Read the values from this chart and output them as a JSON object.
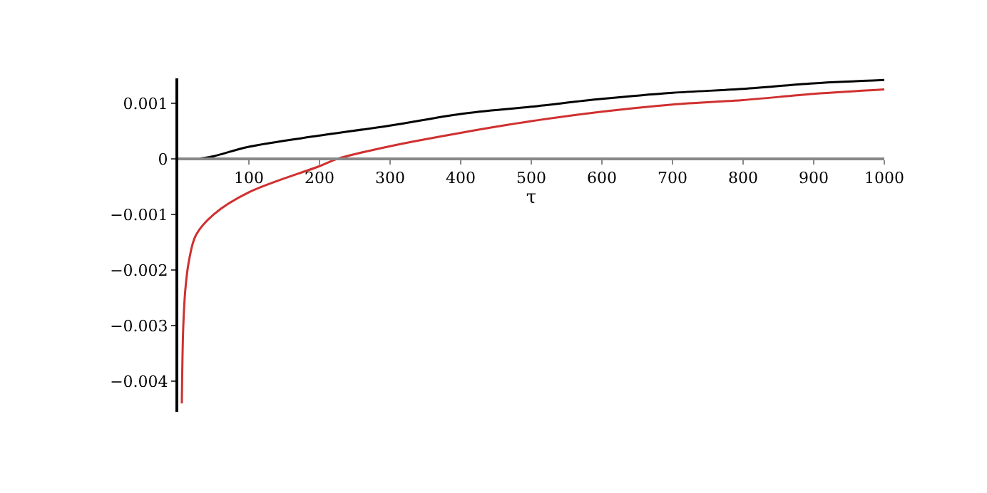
{
  "chart_data": {
    "type": "line",
    "xlabel": "τ",
    "xlim": [
      0,
      1000
    ],
    "xticks": [
      100,
      200,
      300,
      400,
      500,
      600,
      700,
      800,
      900,
      1000
    ],
    "ylim": [
      -0.00455,
      0.00145
    ],
    "yticks": [
      {
        "value": 0.001,
        "label": "0.001"
      },
      0,
      {
        "value": -0.001,
        "label": "−0.001"
      },
      {
        "value": -0.002,
        "label": "−0.002"
      },
      {
        "value": -0.003,
        "label": "−0.003"
      },
      {
        "value": -0.004,
        "label": "−0.004"
      }
    ],
    "legend": false,
    "marker": "none",
    "line_style": "solid",
    "series": [
      {
        "color": "#000000",
        "x": [
          0,
          25,
          50,
          100,
          200,
          300,
          400,
          500,
          600,
          700,
          800,
          900,
          1000
        ],
        "values": [
          0,
          0,
          5e-05,
          0.00022,
          0.00042,
          0.0006,
          0.00081,
          0.00094,
          0.00108,
          0.00119,
          0.00126,
          0.00136,
          0.00142
        ]
      },
      {
        "color": "#d03030",
        "x": [
          5,
          7,
          10,
          15,
          25,
          50,
          100,
          200,
          225,
          300,
          400,
          500,
          600,
          700,
          800,
          900,
          1000
        ],
        "values": [
          -0.0044,
          -0.00304,
          -0.00235,
          -0.00184,
          -0.00137,
          -0.001,
          -0.0006,
          -0.00013,
          0,
          0.00023,
          0.00047,
          0.00068,
          0.00085,
          0.00098,
          0.00106,
          0.00117,
          0.00125
        ]
      }
    ]
  }
}
